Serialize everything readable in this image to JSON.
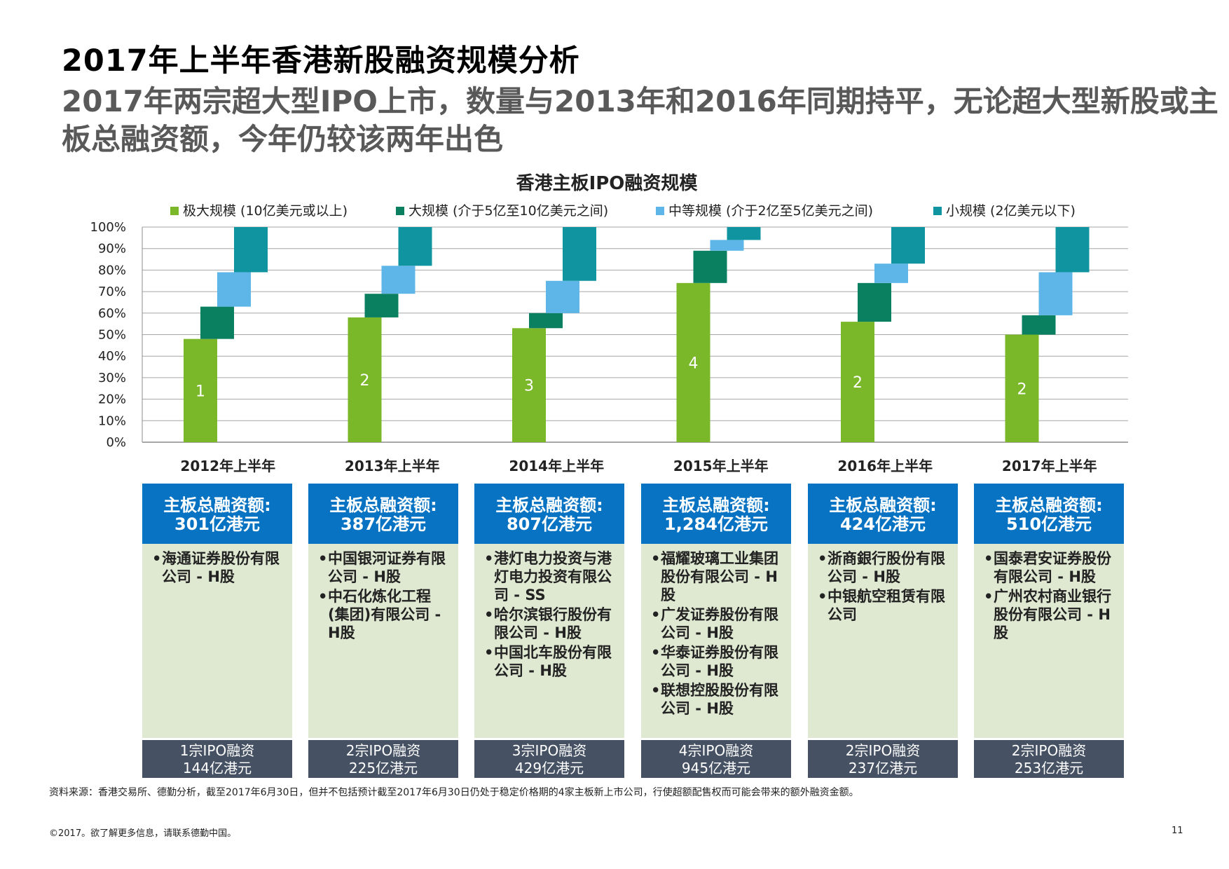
{
  "title": "2017年上半年香港新股融资规模分析",
  "subtitle": "2017年两宗超大型IPO上市，数量与2013年和2016年同期持平，无论超大型新股或主板总融资额，今年仍较该两年出色",
  "chart_data": {
    "type": "bar",
    "subtype": "waterfall-stacked-percent",
    "title": "香港主板IPO融资规模",
    "categories": [
      "2012年上半年",
      "2013年上半年",
      "2014年上半年",
      "2015年上半年",
      "2016年上半年",
      "2017年上半年"
    ],
    "series": [
      {
        "name": "极大规模 (10亿美元或以上)",
        "color": "#7ab829",
        "values": [
          48,
          58,
          53,
          74,
          56,
          50
        ]
      },
      {
        "name": "大规模 (介于5亿至10亿美元之间)",
        "color": "#0b8060",
        "values": [
          15,
          11,
          7,
          15,
          18,
          9
        ]
      },
      {
        "name": "中等规模 (介于2亿至5亿美元之间)",
        "color": "#5eb6e8",
        "values": [
          16,
          13,
          15,
          5,
          9,
          20
        ]
      },
      {
        "name": "小规模 (2亿美元以下)",
        "color": "#10949f",
        "values": [
          21,
          18,
          25,
          6,
          17,
          21
        ]
      }
    ],
    "bar_labels": [
      "1",
      "2",
      "3",
      "4",
      "2",
      "2"
    ],
    "y_ticks": [
      "0%",
      "10%",
      "20%",
      "30%",
      "40%",
      "50%",
      "60%",
      "70%",
      "80%",
      "90%",
      "100%"
    ],
    "ylim": [
      0,
      100
    ],
    "legend": "top",
    "grid": true
  },
  "cards": [
    {
      "total_label": "主板总融资额:",
      "total_value": "301亿港元",
      "companies": [
        "海通证券股份有限公司 - H股"
      ],
      "ipo_count": "1宗IPO融资",
      "ipo_amount": "144亿港元"
    },
    {
      "total_label": "主板总融资额:",
      "total_value": "387亿港元",
      "companies": [
        "中国银河证券有限公司 - H股",
        "中石化炼化工程(集团)有限公司 - H股"
      ],
      "ipo_count": "2宗IPO融资",
      "ipo_amount": "225亿港元"
    },
    {
      "total_label": "主板总融资额:",
      "total_value": "807亿港元",
      "companies": [
        "港灯电力投资与港灯电力投资有限公司 - SS",
        "哈尔滨银行股份有限公司 - H股",
        "中国北车股份有限公司 - H股"
      ],
      "ipo_count": "3宗IPO融资",
      "ipo_amount": "429亿港元"
    },
    {
      "total_label": "主板总融资额:",
      "total_value": "1,284亿港元",
      "companies": [
        "福耀玻璃工业集团股份有限公司 - H股",
        "广发证券股份有限公司 - H股",
        "华泰证券股份有限公司 - H股",
        "联想控股股份有限公司 - H股"
      ],
      "ipo_count": "4宗IPO融资",
      "ipo_amount": "945亿港元"
    },
    {
      "total_label": "主板总融资额:",
      "total_value": "424亿港元",
      "companies": [
        "浙商銀行股份有限公司 - H股",
        "中银航空租赁有限公司"
      ],
      "ipo_count": "2宗IPO融资",
      "ipo_amount": "237亿港元"
    },
    {
      "total_label": "主板总融资额:",
      "total_value": "510亿港元",
      "companies": [
        "国泰君安证券股份有限公司 - H股",
        "广州农村商业银行股份有限公司 - H股"
      ],
      "ipo_count": "2宗IPO融资",
      "ipo_amount": "253亿港元"
    }
  ],
  "source": "资料来源：香港交易所、德勤分析，截至2017年6月30日，但并不包括预计截至2017年6月30日仍处于稳定价格期的4家主板新上市公司，行使超额配售权而可能会带来的额外融资金额。",
  "copyright": "©2017。欲了解更多信息，请联系德勤中国。",
  "page_number": "11"
}
